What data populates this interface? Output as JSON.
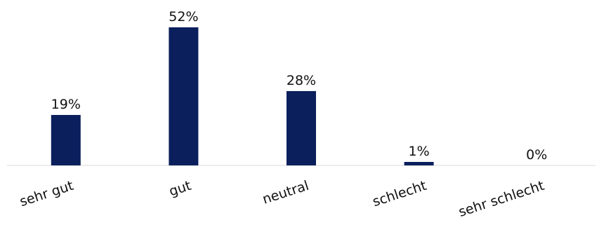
{
  "chart_data": {
    "type": "bar",
    "categories": [
      "sehr gut",
      "gut",
      "neutral",
      "schlecht",
      "sehr schlecht"
    ],
    "values": [
      19,
      52,
      28,
      1,
      0
    ],
    "value_labels": [
      "19%",
      "52%",
      "28%",
      "1%",
      "0%"
    ],
    "unit": "%",
    "ylim": [
      0,
      52
    ],
    "grid": false,
    "legend": "none",
    "colors": {
      "bar": "#0a1f5c",
      "axis": "#d9d9d9",
      "text": "#111111"
    }
  }
}
